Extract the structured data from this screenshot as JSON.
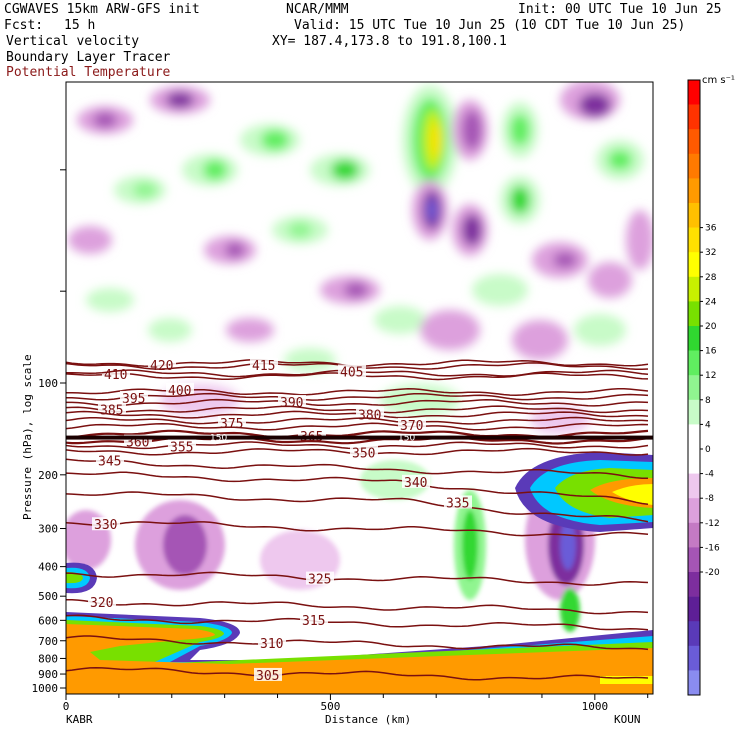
{
  "header": {
    "model": "CGWAVES 15km ARW-GFS init",
    "org": "NCAR/MMM",
    "init": "Init: 00 UTC Tue 10 Jun 25",
    "fcst_label": "Fcst:",
    "fcst_value": "15 h",
    "valid": "Valid: 15 UTC Tue 10 Jun 25 (10 CDT Tue 10 Jun 25)",
    "field1": "Vertical velocity",
    "field2": "Boundary Layer Tracer",
    "field3": "Potential Temperature",
    "xy": "XY= 187.4,173.8 to 191.8,100.1"
  },
  "colors": {
    "theta_line": "#7a1010",
    "field3_text": "#8b1a1a"
  },
  "chart_data": {
    "type": "heatmap",
    "ylabel": "Pressure (hPa), log scale",
    "xlabel": "Distance (km)",
    "x_ticks": [
      "0",
      "500",
      "1000"
    ],
    "x_tick_values": [
      0,
      500,
      1000
    ],
    "xlim": [
      0,
      1110
    ],
    "y_ticks": [
      "100",
      "200",
      "300",
      "400",
      "500",
      "600",
      "700",
      "800",
      "900",
      "1000"
    ],
    "y_tick_values": [
      100,
      200,
      300,
      400,
      500,
      600,
      700,
      800,
      900,
      1000
    ],
    "y_log_scale": true,
    "start_station": "KABR",
    "end_station": "KOUN",
    "colorbar": {
      "unit": "cm s⁻¹",
      "labels": [
        "36",
        "32",
        "28",
        "24",
        "20",
        "16",
        "12",
        "8",
        "4",
        "0",
        "-4",
        "-8",
        "-12",
        "-16",
        "-20"
      ],
      "colors": [
        "#ff0000",
        "#ff3300",
        "#ff5a00",
        "#ff7a00",
        "#ff9a00",
        "#ffc000",
        "#ffe000",
        "#ffff00",
        "#c8f000",
        "#78e000",
        "#30d830",
        "#60ee60",
        "#90f590",
        "#c8fbc8",
        "#ffffff",
        "#ffffff",
        "#eec8ee",
        "#dda0dd",
        "#c47ac4",
        "#a555b5",
        "#7d2e9e",
        "#5e1f96",
        "#5a3ab8",
        "#6a5cd8",
        "#8a8cf0"
      ]
    },
    "isentropes": [
      {
        "label": "420",
        "p": 86
      },
      {
        "label": "415",
        "p": 88
      },
      {
        "label": "410",
        "p": 95
      },
      {
        "label": "405",
        "p": 93
      },
      {
        "label": "400",
        "p": 107
      },
      {
        "label": "395",
        "p": 111
      },
      {
        "label": "390",
        "p": 116
      },
      {
        "label": "385",
        "p": 122
      },
      {
        "label": "380",
        "p": 127
      },
      {
        "label": "375",
        "p": 133
      },
      {
        "label": "370",
        "p": 139
      },
      {
        "label": "365",
        "p": 147
      },
      {
        "label": "360",
        "p": 154
      },
      {
        "label": "355",
        "p": 160
      },
      {
        "label": "350",
        "p": 168
      },
      {
        "label": "345",
        "p": 181
      },
      {
        "label": "340",
        "p": 199
      },
      {
        "label": "335",
        "p": 230
      },
      {
        "label": "330",
        "p": 285
      },
      {
        "label": "325",
        "p": 420
      },
      {
        "label": "320",
        "p": 520
      },
      {
        "label": "315",
        "p": 590
      },
      {
        "label": "310",
        "p": 690
      },
      {
        "label": "305",
        "p": 870
      }
    ],
    "inline_labels": [
      "150",
      "150"
    ]
  }
}
